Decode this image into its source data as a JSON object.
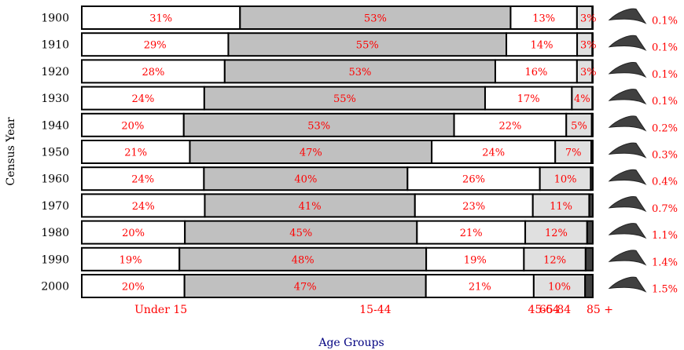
{
  "chart_data": {
    "type": "bar",
    "stacked": true,
    "normalized": true,
    "orientation": "horizontal",
    "ylabel": "Census Year",
    "xlabel": "Age Groups",
    "categories": [
      "1900",
      "1910",
      "1920",
      "1930",
      "1940",
      "1950",
      "1960",
      "1970",
      "1980",
      "1990",
      "2000"
    ],
    "segment_labels": [
      "Under 15",
      "15-44",
      "45-64",
      "65-84",
      "85 +"
    ],
    "segment_colors": [
      "#ffffff",
      "#c0c0c0",
      "#ffffff",
      "#e0e0e0",
      "#404040"
    ],
    "series": [
      {
        "name": "Under 15",
        "values": [
          31,
          29,
          28,
          24,
          20,
          21,
          24,
          24,
          20,
          19,
          20
        ]
      },
      {
        "name": "15-44",
        "values": [
          53,
          55,
          53,
          55,
          53,
          47,
          40,
          41,
          45,
          48,
          47
        ]
      },
      {
        "name": "45-64",
        "values": [
          13,
          14,
          16,
          17,
          22,
          24,
          26,
          23,
          21,
          19,
          21
        ]
      },
      {
        "name": "65-84",
        "values": [
          3,
          3,
          3,
          4,
          5,
          7,
          10,
          11,
          12,
          12,
          10
        ]
      },
      {
        "name": "85 +",
        "values": [
          0.1,
          0.1,
          0.1,
          0.1,
          0.2,
          0.3,
          0.4,
          0.7,
          1.1,
          1.4,
          1.5
        ]
      }
    ],
    "value_labels": [
      [
        "31%",
        "53%",
        "13%",
        "3%",
        "0.1%"
      ],
      [
        "29%",
        "55%",
        "14%",
        "3%",
        "0.1%"
      ],
      [
        "28%",
        "53%",
        "16%",
        "3%",
        "0.1%"
      ],
      [
        "24%",
        "55%",
        "17%",
        "4%",
        "0.1%"
      ],
      [
        "20%",
        "53%",
        "22%",
        "5%",
        "0.2%"
      ],
      [
        "21%",
        "47%",
        "24%",
        "7%",
        "0.3%"
      ],
      [
        "24%",
        "40%",
        "26%",
        "10%",
        "0.4%"
      ],
      [
        "24%",
        "41%",
        "23%",
        "11%",
        "0.7%"
      ],
      [
        "20%",
        "45%",
        "21%",
        "12%",
        "1.1%"
      ],
      [
        "19%",
        "48%",
        "19%",
        "12%",
        "1.4%"
      ],
      [
        "20%",
        "47%",
        "21%",
        "10%",
        "1.5%"
      ]
    ],
    "label_color": "#ff0000",
    "axis_label_color": "#000080",
    "arrow_color": "#404040"
  }
}
